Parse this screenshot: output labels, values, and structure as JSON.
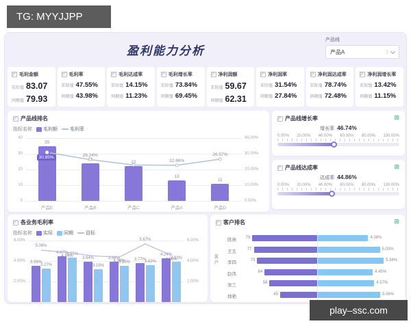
{
  "watermark_top": "TG: MYYJJPP",
  "watermark_bottom": "play–ssc.com",
  "header": {
    "title": "盈利能力分析",
    "filter_label": "产品线",
    "filter_value": "产品A",
    "filter_count": "1"
  },
  "kpi_labels": {
    "actual": "实际值",
    "period": "同期值"
  },
  "kpis": [
    {
      "title": "毛利金额",
      "actual": "83.07",
      "period": "79.93"
    },
    {
      "title": "毛利率",
      "actual": "47.55%",
      "period": "43.98%"
    },
    {
      "title": "毛利达成率",
      "actual": "14.15%",
      "period": "11.23%"
    },
    {
      "title": "毛利增长率",
      "actual": "73.84%",
      "period": "69.45%"
    },
    {
      "title": "净利润额",
      "actual": "59.67",
      "period": "62.31"
    },
    {
      "title": "净利润率",
      "actual": "31.54%",
      "period": "27.84%"
    },
    {
      "title": "净利润达成率",
      "actual": "78.74%",
      "period": "72.48%"
    },
    {
      "title": "净利润增长率",
      "actual": "13.42%",
      "period": "11.15%"
    }
  ],
  "gauges": [
    {
      "title": "产品线增长率",
      "label": "增长率",
      "value": "46.74%",
      "percent": 46.74,
      "ticks": [
        "0.00%",
        "20.00%",
        "40.00%",
        "60.00%",
        "80.00%",
        "100.00%"
      ]
    },
    {
      "title": "产品线达成率",
      "label": "达成率",
      "value": "44.86%",
      "percent": 44.86,
      "ticks": [
        "0.00%",
        "20.00%",
        "40.00%",
        "60.00%",
        "80.00%",
        "100.00%"
      ]
    }
  ],
  "chart_data": [
    {
      "name": "产品线排名",
      "type": "bar",
      "legend_title": "指标名称",
      "categories": [
        "产品E",
        "产品B",
        "产品C",
        "产品A",
        "产品D"
      ],
      "series": [
        {
          "name": "毛利额",
          "type": "bar",
          "color": "#8777d9",
          "values": [
            35,
            24,
            22,
            13,
            11
          ],
          "labels": [
            "35",
            "24",
            "22",
            "13",
            "11"
          ]
        },
        {
          "name": "毛利率",
          "type": "line",
          "color": "#aec3dc",
          "values": [
            30.85,
            26.24,
            22.9,
            22.66,
            26.57
          ],
          "labels": [
            "30.85%",
            "26.24%",
            "",
            "22.66%",
            "26.57%"
          ],
          "highlight_index": 0
        }
      ],
      "ylim": [
        0,
        40
      ],
      "y_ticks": [
        "0",
        "10",
        "20",
        "30",
        "40"
      ],
      "y2lim": [
        0,
        40
      ],
      "y2_ticks": [
        "0.00%",
        "10.00%",
        "20.00%",
        "30.00%",
        "40.00%"
      ],
      "legend_position": "top",
      "grid": true
    },
    {
      "name": "各业务毛利率",
      "type": "bar",
      "legend_title": "指标名称",
      "categories": [
        "",
        "",
        "",
        "",
        "",
        ""
      ],
      "series": [
        {
          "name": "实际",
          "type": "bar",
          "color": "#8777d9",
          "values": [
            3.56,
            4.47,
            3.94,
            3.96,
            3.77,
            4.24
          ],
          "labels": [
            "3.56%",
            "4.47%",
            "3.94%",
            "3.96%",
            "3.77%",
            "4.24%"
          ]
        },
        {
          "name": "同期",
          "type": "bar",
          "color": "#8fc7f2",
          "values": [
            3.27,
            4.35,
            3.19,
            3.55,
            3.63,
            3.93
          ],
          "labels": [
            "3.27%",
            "4.35%",
            "3.19%",
            "3.55%",
            "3.63%",
            "3.93%"
          ]
        },
        {
          "name": "目标",
          "type": "line",
          "color": "#c3b7e4",
          "values": [
            5.06,
            4.84,
            4.5,
            4.38,
            5.67,
            4.56
          ],
          "labels": [
            "5.06%",
            "4.84%",
            "",
            "4.38%",
            "5.67%",
            "4.56%"
          ]
        }
      ],
      "ylim": [
        0,
        6.5
      ],
      "y_ticks": [
        "2.00%",
        "4.00%",
        "6.00%"
      ],
      "y2_ticks": [
        "2.00%",
        "4.00%",
        "6.00%"
      ],
      "legend_position": "top",
      "grid": true
    },
    {
      "name": "客户排名",
      "type": "bar",
      "orientation": "horizontal",
      "axis_title": "客户",
      "left_color": "#7b6fd2",
      "right_color": "#85c6f3",
      "rows": [
        {
          "name": "陈燕",
          "value": 79,
          "rate": "4.08%",
          "rate_num": 4.08
        },
        {
          "name": "王五",
          "value": 77,
          "rate": "5.03%",
          "rate_num": 5.03
        },
        {
          "name": "李四",
          "value": 73,
          "rate": "5.34%",
          "rate_num": 5.34
        },
        {
          "name": "赵伟",
          "value": 64,
          "rate": "4.45%",
          "rate_num": 4.45
        },
        {
          "name": "张三",
          "value": 58,
          "rate": "4.57%",
          "rate_num": 4.57
        },
        {
          "name": "郑艳",
          "value": 45,
          "rate": "5.06%",
          "rate_num": 5.06
        }
      ]
    }
  ],
  "colors": {
    "accent_purple": "#8678d9",
    "highlight_badge": "#7063cc",
    "bar_blue": "#8fc7f2",
    "line_blue": "#aec3dc",
    "target_line": "#c3b7e4",
    "teal": "#2fa58c",
    "title_navy": "#303768",
    "dashboard_bg": "#f1f0fa"
  }
}
